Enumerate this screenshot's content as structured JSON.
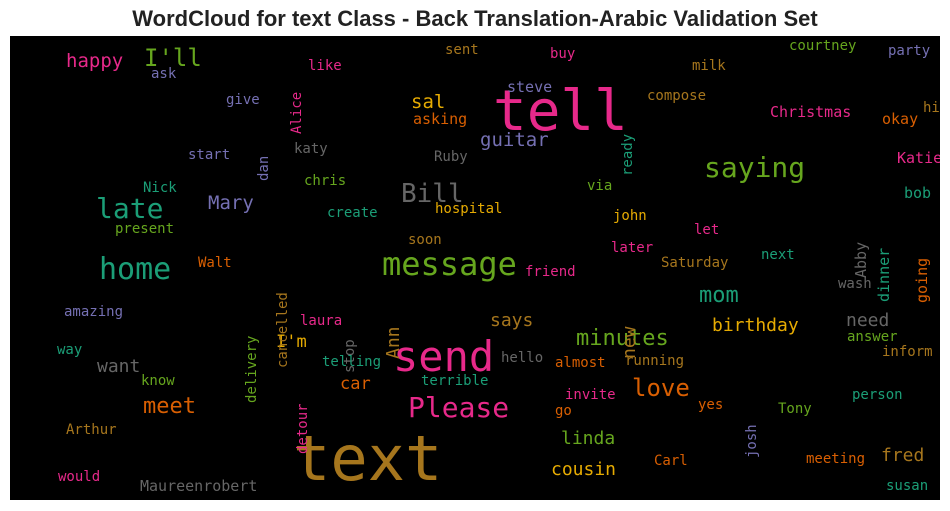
{
  "title": "WordCloud for text Class - Back Translation-Arabic Validation Set",
  "chart_data": {
    "type": "wordcloud",
    "background": "#000000",
    "words": [
      {
        "text": "text",
        "color": "#a6761d"
      },
      {
        "text": "tell",
        "color": "#e7298a"
      },
      {
        "text": "send",
        "color": "#e7298a"
      },
      {
        "text": "message",
        "color": "#66a61e"
      },
      {
        "text": "saying",
        "color": "#66a61e"
      },
      {
        "text": "home",
        "color": "#1b9e77"
      },
      {
        "text": "late",
        "color": "#1b9e77"
      },
      {
        "text": "Please",
        "color": "#e7298a"
      },
      {
        "text": "Bill",
        "color": "#666666"
      },
      {
        "text": "love",
        "color": "#d95f02"
      },
      {
        "text": "meet",
        "color": "#d95f02"
      },
      {
        "text": "minutes",
        "color": "#66a61e"
      },
      {
        "text": "mom",
        "color": "#1b9e77"
      },
      {
        "text": "I'll",
        "color": "#66a61e"
      },
      {
        "text": "happy",
        "color": "#e7298a"
      },
      {
        "text": "Mary",
        "color": "#7570b3"
      },
      {
        "text": "guitar",
        "color": "#7570b3"
      },
      {
        "text": "sal",
        "color": "#e6ab02"
      },
      {
        "text": "birthday",
        "color": "#e6ab02"
      },
      {
        "text": "cousin",
        "color": "#e6ab02"
      },
      {
        "text": "linda",
        "color": "#66a61e"
      },
      {
        "text": "says",
        "color": "#a6761d"
      },
      {
        "text": "Ann",
        "color": "#a6761d"
      },
      {
        "text": "new",
        "color": "#a6761d"
      },
      {
        "text": "need",
        "color": "#666666"
      },
      {
        "text": "want",
        "color": "#666666"
      },
      {
        "text": "fred",
        "color": "#a6761d"
      },
      {
        "text": "I'm",
        "color": "#e6ab02"
      },
      {
        "text": "car",
        "color": "#d95f02"
      },
      {
        "text": "steve",
        "color": "#7570b3"
      },
      {
        "text": "asking",
        "color": "#d95f02"
      },
      {
        "text": "ready",
        "color": "#1b9e77"
      },
      {
        "text": "compose",
        "color": "#a6761d"
      },
      {
        "text": "Christmas",
        "color": "#e7298a"
      },
      {
        "text": "okay",
        "color": "#d95f02"
      },
      {
        "text": "hi",
        "color": "#a6761d"
      },
      {
        "text": "Katie",
        "color": "#e7298a"
      },
      {
        "text": "bob",
        "color": "#1b9e77"
      },
      {
        "text": "dinner",
        "color": "#1b9e77"
      },
      {
        "text": "going",
        "color": "#d95f02"
      },
      {
        "text": "Abby",
        "color": "#666666"
      },
      {
        "text": "courtney",
        "color": "#66a61e"
      },
      {
        "text": "party",
        "color": "#7570b3"
      },
      {
        "text": "buy",
        "color": "#e7298a"
      },
      {
        "text": "milk",
        "color": "#a6761d"
      },
      {
        "text": "sent",
        "color": "#a6761d"
      },
      {
        "text": "like",
        "color": "#e7298a"
      },
      {
        "text": "Alice",
        "color": "#e7298a"
      },
      {
        "text": "ask",
        "color": "#7570b3"
      },
      {
        "text": "give",
        "color": "#7570b3"
      },
      {
        "text": "dan",
        "color": "#7570b3"
      },
      {
        "text": "katy",
        "color": "#666666"
      },
      {
        "text": "Ruby",
        "color": "#666666"
      },
      {
        "text": "start",
        "color": "#7570b3"
      },
      {
        "text": "Nick",
        "color": "#1b9e77"
      },
      {
        "text": "chris",
        "color": "#66a61e"
      },
      {
        "text": "create",
        "color": "#1b9e77"
      },
      {
        "text": "hospital",
        "color": "#e6ab02"
      },
      {
        "text": "via",
        "color": "#66a61e"
      },
      {
        "text": "john",
        "color": "#e6ab02"
      },
      {
        "text": "let",
        "color": "#e7298a"
      },
      {
        "text": "later",
        "color": "#e7298a"
      },
      {
        "text": "next",
        "color": "#1b9e77"
      },
      {
        "text": "Saturday",
        "color": "#a6761d"
      },
      {
        "text": "soon",
        "color": "#a6761d"
      },
      {
        "text": "friend",
        "color": "#e7298a"
      },
      {
        "text": "present",
        "color": "#66a61e"
      },
      {
        "text": "Walt",
        "color": "#d95f02"
      },
      {
        "text": "cancelled",
        "color": "#a6761d"
      },
      {
        "text": "delivery",
        "color": "#66a61e"
      },
      {
        "text": "laura",
        "color": "#e7298a"
      },
      {
        "text": "stop",
        "color": "#666666"
      },
      {
        "text": "amazing",
        "color": "#7570b3"
      },
      {
        "text": "way",
        "color": "#1b9e77"
      },
      {
        "text": "know",
        "color": "#66a61e"
      },
      {
        "text": "telling",
        "color": "#1b9e77"
      },
      {
        "text": "hello",
        "color": "#666666"
      },
      {
        "text": "almost",
        "color": "#d95f02"
      },
      {
        "text": "running",
        "color": "#a6761d"
      },
      {
        "text": "wash",
        "color": "#666666"
      },
      {
        "text": "answer",
        "color": "#66a61e"
      },
      {
        "text": "inform",
        "color": "#a6761d"
      },
      {
        "text": "person",
        "color": "#1b9e77"
      },
      {
        "text": "terrible",
        "color": "#1b9e77"
      },
      {
        "text": "invite",
        "color": "#e7298a"
      },
      {
        "text": "yes",
        "color": "#d95f02"
      },
      {
        "text": "josh",
        "color": "#7570b3"
      },
      {
        "text": "Tony",
        "color": "#66a61e"
      },
      {
        "text": "go",
        "color": "#d95f02"
      },
      {
        "text": "detour",
        "color": "#e7298a"
      },
      {
        "text": "Arthur",
        "color": "#a6761d"
      },
      {
        "text": "would",
        "color": "#e7298a"
      },
      {
        "text": "Maureenrobert",
        "color": "#666666"
      },
      {
        "text": "Carl",
        "color": "#d95f02"
      },
      {
        "text": "meeting",
        "color": "#d95f02"
      },
      {
        "text": "susan",
        "color": "#1b9e77"
      }
    ]
  }
}
